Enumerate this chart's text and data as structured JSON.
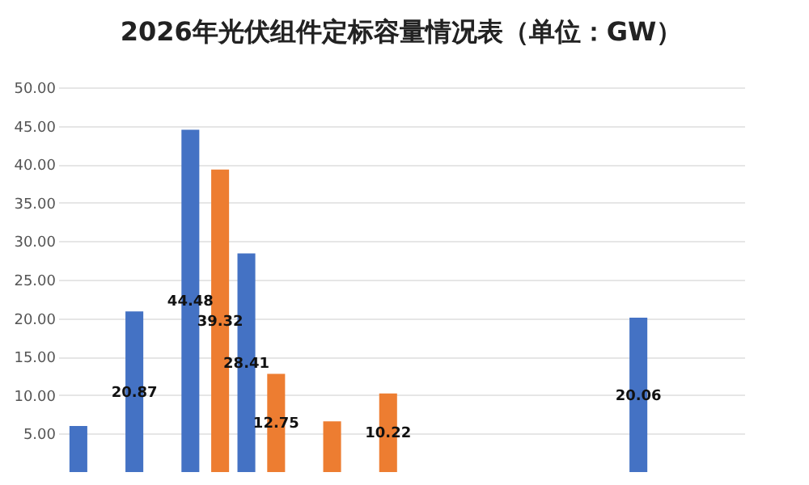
{
  "chart_data": {
    "type": "bar",
    "title": "2026年光伏组件定标容量情况表（单位：GW）",
    "categories": [
      null,
      null,
      null,
      null,
      null,
      null,
      null,
      null,
      null,
      null,
      null,
      null
    ],
    "series": [
      {
        "color": "#4472c4",
        "values": [
          6.0,
          20.87,
          44.48,
          28.41,
          null,
          null,
          null,
          null,
          null,
          null,
          20.06,
          null
        ],
        "value_labels": [
          null,
          "20.87",
          "44.48",
          "28.41",
          null,
          null,
          null,
          null,
          null,
          null,
          "20.06",
          null
        ]
      },
      {
        "color": "#ed7d31",
        "values": [
          null,
          null,
          39.32,
          12.75,
          6.6,
          10.22,
          null,
          null,
          null,
          null,
          null,
          null
        ],
        "value_labels": [
          null,
          null,
          "39.32",
          "12.75",
          null,
          "10.22",
          null,
          null,
          null,
          null,
          null,
          null
        ]
      }
    ],
    "ylim": [
      0,
      50
    ],
    "yticks": [
      {
        "value": 5,
        "label": "5.00"
      },
      {
        "value": 10,
        "label": "10.00"
      },
      {
        "value": 15,
        "label": "15.00"
      },
      {
        "value": 20,
        "label": "20.00"
      },
      {
        "value": 25,
        "label": "25.00"
      },
      {
        "value": 30,
        "label": "30.00"
      },
      {
        "value": 35,
        "label": "35.00"
      },
      {
        "value": 40,
        "label": "40.00"
      },
      {
        "value": 45,
        "label": "45.00"
      },
      {
        "value": 50,
        "label": "50.00"
      }
    ],
    "grid": "y",
    "tick_labels": "y",
    "legend": false
  }
}
